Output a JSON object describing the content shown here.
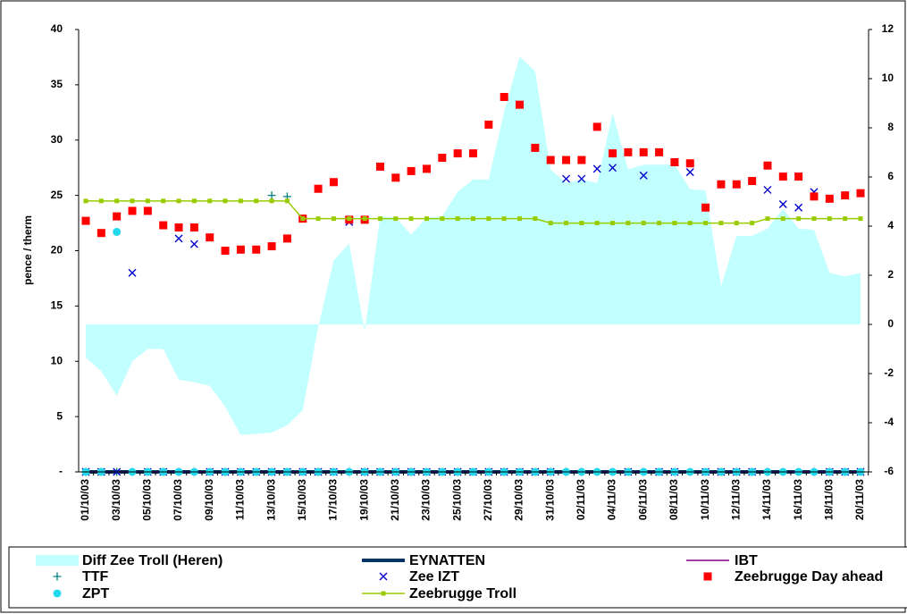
{
  "chart_data": {
    "type": "combo",
    "y_label": "pence / therm",
    "categories": [
      "01/10/03",
      null,
      "03/10/03",
      null,
      "05/10/03",
      null,
      "07/10/03",
      null,
      "09/10/03",
      null,
      "11/10/03",
      null,
      "13/10/03",
      null,
      "15/10/03",
      null,
      "17/10/03",
      null,
      "19/10/03",
      null,
      "21/10/03",
      null,
      "23/10/03",
      null,
      "25/10/03",
      null,
      "27/10/03",
      null,
      "29/10/03",
      null,
      "31/10/03",
      null,
      "02/11/03",
      null,
      "04/11/03",
      null,
      "06/11/03",
      null,
      "08/11/03",
      null,
      "10/11/03",
      null,
      "12/11/03",
      null,
      "14/11/03",
      null,
      "16/11/03",
      null,
      "18/11/03",
      null,
      "20/11/03"
    ],
    "ylim": [
      0,
      40
    ],
    "yticks": [
      {
        "value": 0,
        "label": "-"
      },
      5,
      10,
      15,
      20,
      25,
      30,
      35,
      40
    ],
    "y2lim": [
      -6,
      12
    ],
    "y2ticks": [
      -6,
      -4,
      -2,
      0,
      2,
      4,
      6,
      8,
      10,
      12
    ],
    "legend": "bottom",
    "grid": false,
    "series": [
      {
        "name": "Diff Zee Troll (Heren)",
        "color": "#c2ffff",
        "style": "area",
        "axis": "y2",
        "values": [
          -1.35,
          -1.9,
          -2.9,
          -1.5,
          -1,
          -1,
          -2.25,
          -2.35,
          -2.5,
          -3.35,
          -4.5,
          -4.45,
          -4.4,
          -4.1,
          -3.5,
          -0.1,
          2.6,
          3.3,
          -0.3,
          4.4,
          4.35,
          3.65,
          4.35,
          4.4,
          5.4,
          5.9,
          5.9,
          8.65,
          10.9,
          10.3,
          6.3,
          5.75,
          5.9,
          5.75,
          8.6,
          6.3,
          6.5,
          6.5,
          6.5,
          5.5,
          5.45,
          1.55,
          3.6,
          3.6,
          3.9,
          4.7,
          3.9,
          3.85,
          2.1,
          1.95,
          2.1
        ]
      },
      {
        "name": "EYNATTEN",
        "color": "#003366",
        "style": "line",
        "values": [
          0,
          0,
          0,
          0,
          0,
          0,
          0,
          0,
          0,
          0,
          0,
          0,
          0,
          0,
          0,
          0,
          0,
          0,
          0,
          0,
          0,
          0,
          0,
          0,
          0,
          0,
          0,
          0,
          0,
          0,
          0,
          0,
          0,
          0,
          0,
          0,
          0,
          0,
          0,
          0,
          0,
          0,
          0,
          0,
          0,
          0,
          0,
          0,
          0,
          0,
          0
        ]
      },
      {
        "name": "IBT",
        "color": "#800080",
        "style": "line",
        "values": [
          0,
          0,
          0,
          0,
          0,
          0,
          0,
          0,
          0,
          0,
          0,
          0,
          0,
          0,
          0,
          0,
          0,
          0,
          0,
          0,
          0,
          0,
          0,
          0,
          0,
          0,
          0,
          0,
          0,
          0,
          0,
          0,
          0,
          0,
          0,
          0,
          0,
          0,
          0,
          0,
          0,
          0,
          0,
          0,
          0,
          0,
          0,
          0,
          0,
          0,
          0
        ]
      },
      {
        "name": "TTF",
        "color": "#008080",
        "style": "marker",
        "marker": "plus",
        "values": [
          0,
          0,
          0,
          0,
          0,
          0,
          0,
          0,
          0,
          0,
          0,
          0,
          25,
          24.9,
          0,
          0,
          0,
          0,
          0,
          0,
          0,
          0,
          0,
          0,
          0,
          0,
          0,
          0,
          0,
          0,
          0,
          0,
          0,
          0,
          0,
          0,
          0,
          0,
          0,
          0,
          0,
          0,
          0,
          0,
          0,
          0,
          0,
          0,
          0,
          0,
          0
        ]
      },
      {
        "name": "Zee IZT",
        "color": "#0000cc",
        "style": "marker",
        "marker": "cross",
        "values": [
          0,
          0,
          0,
          18,
          0,
          0,
          21.1,
          20.6,
          0,
          0,
          0,
          0,
          0,
          0,
          0,
          0,
          0,
          22.6,
          0,
          0,
          0,
          0,
          0,
          0,
          0,
          0,
          0,
          0,
          0,
          0,
          0,
          26.5,
          26.5,
          27.4,
          27.5,
          0,
          26.8,
          0,
          0,
          27.1,
          0,
          0,
          0,
          0,
          25.5,
          24.2,
          23.9,
          25.3,
          0,
          0,
          0
        ]
      },
      {
        "name": "Zeebrugge Day ahead",
        "color": "#ff0000",
        "style": "marker",
        "marker": "square",
        "values": [
          22.7,
          21.6,
          23.1,
          23.6,
          23.6,
          22.3,
          22.1,
          22.1,
          21.2,
          20,
          20.1,
          20.1,
          20.4,
          21.1,
          22.9,
          25.6,
          26.2,
          22.8,
          22.8,
          27.6,
          26.6,
          27.2,
          27.4,
          28.4,
          28.8,
          28.8,
          31.4,
          33.9,
          33.2,
          29.3,
          28.2,
          28.2,
          28.2,
          31.2,
          28.8,
          28.9,
          28.9,
          28.9,
          28,
          27.9,
          23.9,
          26,
          26,
          26.3,
          27.7,
          26.7,
          26.7,
          24.9,
          24.7,
          25,
          25.2
        ]
      },
      {
        "name": "ZPT",
        "color": "#22d8ec",
        "style": "marker",
        "marker": "circle",
        "values": [
          0,
          0,
          21.7,
          0,
          0,
          0,
          0,
          0,
          0,
          0,
          0,
          0,
          0,
          0,
          0,
          0,
          0,
          0,
          0,
          0,
          0,
          0,
          0,
          0,
          0,
          0,
          0,
          0,
          0,
          0,
          0,
          0,
          0,
          0,
          0,
          0,
          0,
          0,
          0,
          0,
          0,
          0,
          0,
          0,
          0,
          0,
          0,
          0,
          0,
          0,
          0
        ]
      },
      {
        "name": "Zeebrugge Troll",
        "color": "#99cc00",
        "style": "line",
        "marker": "square",
        "values": [
          24.5,
          24.5,
          24.5,
          24.5,
          24.5,
          24.5,
          24.5,
          24.5,
          24.5,
          24.5,
          24.5,
          24.5,
          24.5,
          24.5,
          22.9,
          22.9,
          22.9,
          22.9,
          22.9,
          22.9,
          22.9,
          22.9,
          22.9,
          22.9,
          22.9,
          22.9,
          22.9,
          22.9,
          22.9,
          22.9,
          22.5,
          22.5,
          22.5,
          22.5,
          22.5,
          22.5,
          22.5,
          22.5,
          22.5,
          22.5,
          22.5,
          22.5,
          22.5,
          22.5,
          22.9,
          22.9,
          22.9,
          22.9,
          22.9,
          22.9,
          22.9
        ]
      }
    ]
  }
}
